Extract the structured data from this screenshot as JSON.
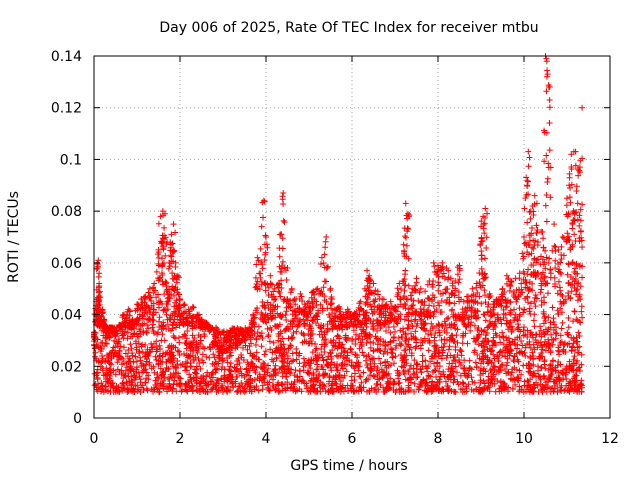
{
  "chart_data": {
    "type": "scatter",
    "title": "Day 006 of 2025, Rate Of TEC Index for receiver mtbu",
    "xlabel": "GPS time / hours",
    "ylabel": "ROTI / TECUs",
    "xlim": [
      0,
      12
    ],
    "ylim": [
      0,
      0.14
    ],
    "x_ticks": [
      0,
      2,
      4,
      6,
      8,
      10,
      12
    ],
    "x_tick_labels": [
      "0",
      "2",
      "4",
      "6",
      "8",
      "10",
      "12"
    ],
    "y_ticks": [
      0,
      0.02,
      0.04,
      0.06,
      0.08,
      0.1,
      0.12,
      0.14
    ],
    "y_tick_labels": [
      "0",
      "0.02",
      "0.04",
      "0.06",
      "0.08",
      "0.1",
      "0.12",
      "0.14"
    ],
    "grid": true,
    "marker": "+",
    "series": [
      {
        "name": "ROTI",
        "color": "#ff0000",
        "x": [
          0.0,
          0.05,
          0.08,
          0.1,
          0.12,
          0.15,
          0.2,
          0.25,
          0.3,
          0.35,
          0.4,
          0.5,
          0.6,
          0.7,
          0.8,
          0.9,
          1.0,
          1.1,
          1.2,
          1.3,
          1.4,
          1.5,
          1.55,
          1.6,
          1.65,
          1.7,
          1.75,
          1.8,
          1.85,
          1.9,
          1.95,
          2.0,
          2.1,
          2.2,
          2.3,
          2.4,
          2.5,
          2.6,
          2.7,
          2.8,
          2.9,
          3.0,
          3.1,
          3.2,
          3.3,
          3.4,
          3.5,
          3.6,
          3.7,
          3.8,
          3.9,
          3.95,
          4.0,
          4.1,
          4.2,
          4.3,
          4.35,
          4.4,
          4.5,
          4.6,
          4.7,
          4.8,
          4.9,
          5.0,
          5.1,
          5.2,
          5.3,
          5.4,
          5.5,
          5.6,
          5.7,
          5.8,
          5.9,
          6.0,
          6.1,
          6.2,
          6.3,
          6.35,
          6.4,
          6.5,
          6.6,
          6.7,
          6.8,
          6.9,
          7.0,
          7.1,
          7.2,
          7.25,
          7.3,
          7.4,
          7.5,
          7.6,
          7.7,
          7.8,
          7.9,
          8.0,
          8.1,
          8.2,
          8.3,
          8.4,
          8.5,
          8.6,
          8.7,
          8.8,
          8.9,
          9.0,
          9.05,
          9.1,
          9.2,
          9.3,
          9.4,
          9.5,
          9.6,
          9.7,
          9.8,
          9.9,
          10.0,
          10.05,
          10.1,
          10.15,
          10.2,
          10.25,
          10.3,
          10.4,
          10.45,
          10.5,
          10.55,
          10.6,
          10.7,
          10.8,
          10.9,
          11.0,
          11.05,
          11.1,
          11.15,
          11.2,
          11.25,
          11.3,
          11.35
        ],
        "y": [
          0.028,
          0.045,
          0.058,
          0.061,
          0.052,
          0.038,
          0.042,
          0.036,
          0.033,
          0.031,
          0.035,
          0.032,
          0.036,
          0.04,
          0.042,
          0.038,
          0.044,
          0.046,
          0.047,
          0.05,
          0.052,
          0.065,
          0.078,
          0.08,
          0.079,
          0.068,
          0.06,
          0.071,
          0.075,
          0.06,
          0.055,
          0.046,
          0.044,
          0.042,
          0.043,
          0.04,
          0.038,
          0.037,
          0.034,
          0.028,
          0.024,
          0.025,
          0.026,
          0.027,
          0.028,
          0.029,
          0.03,
          0.033,
          0.04,
          0.062,
          0.074,
          0.084,
          0.07,
          0.055,
          0.05,
          0.052,
          0.071,
          0.087,
          0.058,
          0.05,
          0.046,
          0.048,
          0.044,
          0.045,
          0.049,
          0.05,
          0.062,
          0.07,
          0.05,
          0.042,
          0.043,
          0.04,
          0.042,
          0.04,
          0.041,
          0.045,
          0.05,
          0.057,
          0.055,
          0.052,
          0.049,
          0.046,
          0.044,
          0.045,
          0.043,
          0.052,
          0.067,
          0.083,
          0.079,
          0.05,
          0.054,
          0.05,
          0.049,
          0.053,
          0.06,
          0.059,
          0.06,
          0.058,
          0.054,
          0.053,
          0.059,
          0.045,
          0.047,
          0.05,
          0.052,
          0.074,
          0.078,
          0.081,
          0.048,
          0.045,
          0.046,
          0.05,
          0.055,
          0.053,
          0.054,
          0.056,
          0.07,
          0.093,
          0.103,
          0.077,
          0.082,
          0.086,
          0.083,
          0.072,
          0.066,
          0.14,
          0.133,
          0.128,
          0.075,
          0.065,
          0.07,
          0.085,
          0.09,
          0.102,
          0.08,
          0.103,
          0.083,
          0.097,
          0.12
        ]
      }
    ],
    "dense_band": {
      "y_min": 0.01,
      "y_max": 0.035,
      "x_min": 0.0,
      "x_max": 11.35
    }
  }
}
